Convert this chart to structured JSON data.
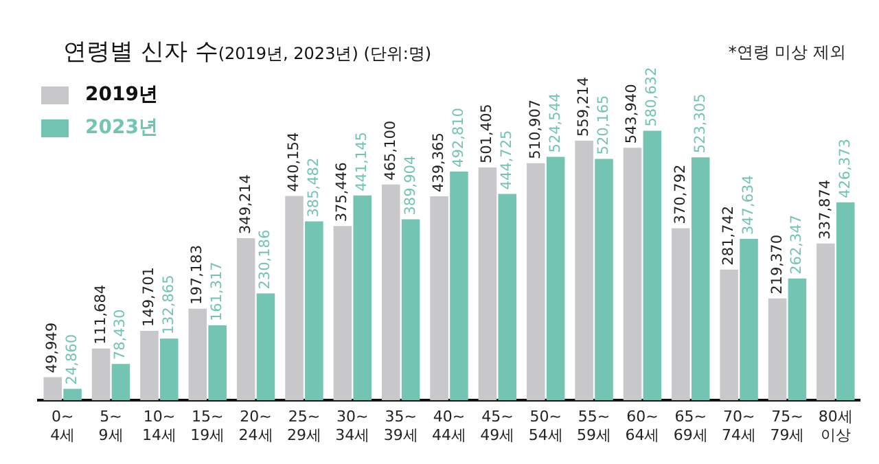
{
  "chart_data": {
    "type": "bar",
    "title": "연령별 신자 수",
    "subtitle": "(2019년, 2023년) (단위:명)",
    "annotations": [
      "*연령 미상 제외"
    ],
    "categories": [
      "0~\n4세",
      "5~\n9세",
      "10~\n14세",
      "15~\n19세",
      "20~\n24세",
      "25~\n29세",
      "30~\n34세",
      "35~\n39세",
      "40~\n44세",
      "45~\n49세",
      "50~\n54세",
      "55~\n59세",
      "60~\n64세",
      "65~\n69세",
      "70~\n74세",
      "75~\n79세",
      "80세\n이상"
    ],
    "series": [
      {
        "name": "2019년",
        "color": "#c8c8ca",
        "values": [
          49949,
          111684,
          149701,
          197183,
          349214,
          440154,
          375446,
          465100,
          439365,
          501405,
          510907,
          559214,
          543940,
          370792,
          281742,
          219370,
          337874
        ],
        "value_labels": [
          "49,949",
          "111,684",
          "149,701",
          "197,183",
          "349,214",
          "440,154",
          "375,446",
          "465,100",
          "439,365",
          "501,405",
          "510,907",
          "559,214",
          "543,940",
          "370,792",
          "281,742",
          "219,370",
          "337,874"
        ]
      },
      {
        "name": "2023년",
        "color": "#74c4b4",
        "values": [
          24860,
          78430,
          132865,
          161317,
          230186,
          385482,
          441145,
          389904,
          492810,
          444725,
          524544,
          520165,
          580632,
          523305,
          347634,
          262347,
          426373
        ],
        "value_labels": [
          "24,860",
          "78,430",
          "132,865",
          "161,317",
          "230,186",
          "385,482",
          "441,145",
          "389,904",
          "492,810",
          "444,725",
          "524,544",
          "520,165",
          "580,632",
          "523,305",
          "347,634",
          "262,347",
          "426,373"
        ]
      }
    ],
    "legend": "top left",
    "grid": false,
    "tick_labels": "x"
  }
}
